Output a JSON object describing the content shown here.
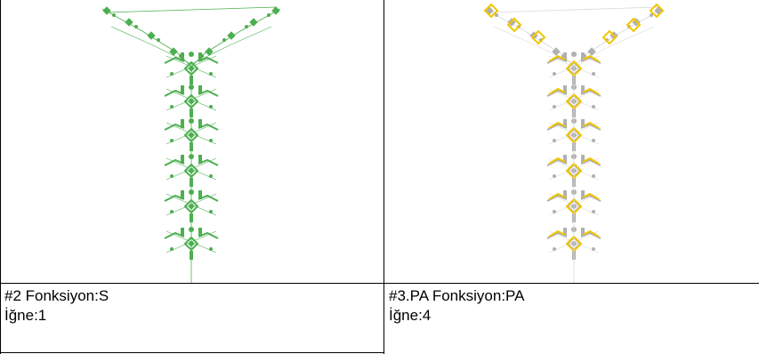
{
  "panels": [
    {
      "caption_line1": "#2 Fonksiyon:S",
      "caption_line2": "İğne:1",
      "pattern_color": "#4caf50",
      "accent_color": "#4caf50"
    },
    {
      "caption_line1": "#3.PA Fonksiyon:PA",
      "caption_line2": "İğne:4",
      "pattern_color": "#c8c8c8",
      "accent_color": "#f2c500"
    }
  ]
}
